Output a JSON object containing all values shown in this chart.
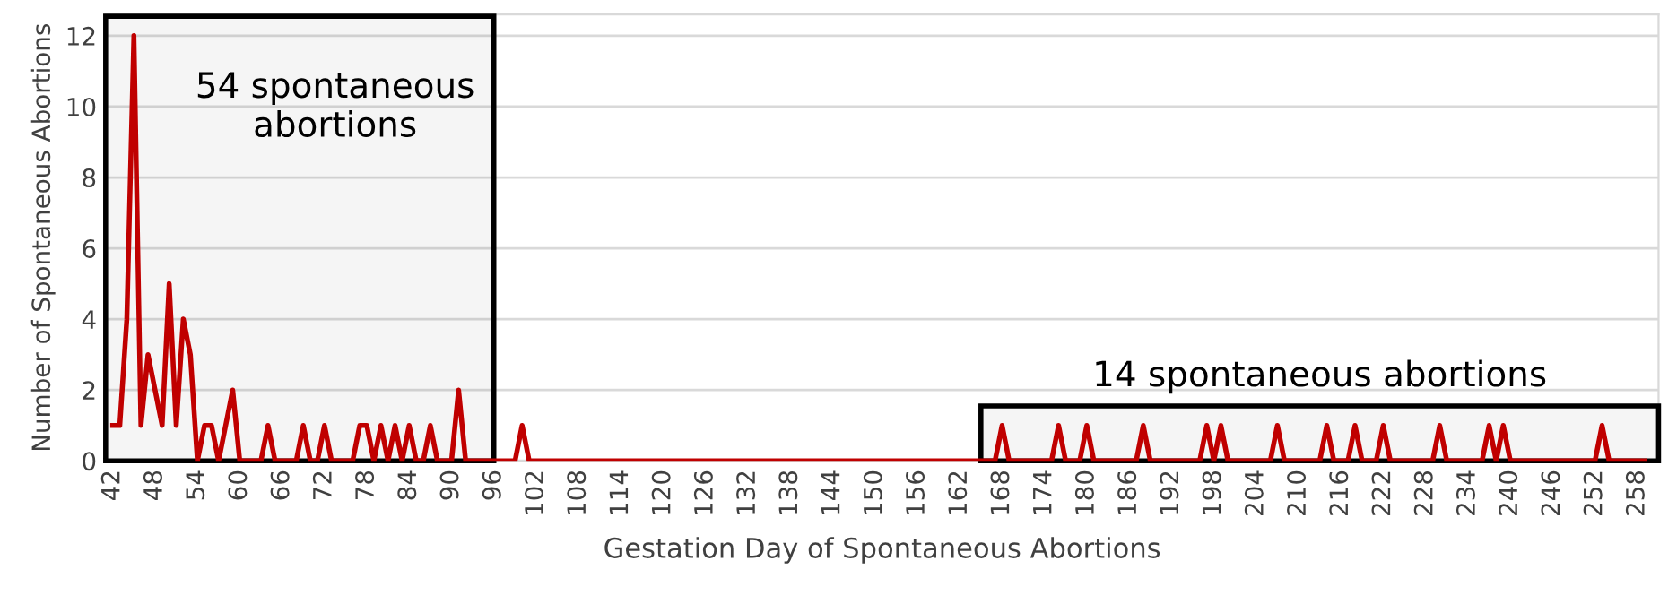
{
  "chart_data": {
    "type": "line",
    "xlabel": "Gestation Day of Spontaneous Abortions",
    "ylabel": "Number of Spontaneous Abortions",
    "x": [
      42,
      43,
      44,
      45,
      46,
      47,
      48,
      49,
      50,
      51,
      52,
      53,
      54,
      55,
      56,
      57,
      58,
      59,
      60,
      61,
      62,
      63,
      64,
      65,
      66,
      67,
      68,
      69,
      70,
      71,
      72,
      73,
      74,
      75,
      76,
      77,
      78,
      79,
      80,
      81,
      82,
      83,
      84,
      85,
      86,
      87,
      88,
      89,
      90,
      91,
      92,
      93,
      94,
      95,
      96,
      97,
      98,
      99,
      100,
      101,
      102,
      103,
      104,
      105,
      106,
      107,
      108,
      109,
      110,
      111,
      112,
      113,
      114,
      115,
      116,
      117,
      118,
      119,
      120,
      121,
      122,
      123,
      124,
      125,
      126,
      127,
      128,
      129,
      130,
      131,
      132,
      133,
      134,
      135,
      136,
      137,
      138,
      139,
      140,
      141,
      142,
      143,
      144,
      145,
      146,
      147,
      148,
      149,
      150,
      151,
      152,
      153,
      154,
      155,
      156,
      157,
      158,
      159,
      160,
      161,
      162,
      163,
      164,
      165,
      166,
      167,
      168,
      169,
      170,
      171,
      172,
      173,
      174,
      175,
      176,
      177,
      178,
      179,
      180,
      181,
      182,
      183,
      184,
      185,
      186,
      187,
      188,
      189,
      190,
      191,
      192,
      193,
      194,
      195,
      196,
      197,
      198,
      199,
      200,
      201,
      202,
      203,
      204,
      205,
      206,
      207,
      208,
      209,
      210,
      211,
      212,
      213,
      214,
      215,
      216,
      217,
      218,
      219,
      220,
      221,
      222,
      223,
      224,
      225,
      226,
      227,
      228,
      229,
      230,
      231,
      232,
      233,
      234,
      235,
      236,
      237,
      238,
      239,
      240,
      241,
      242,
      243,
      244,
      245,
      246,
      247,
      248,
      249,
      250,
      251,
      252,
      253,
      254,
      255,
      256,
      257,
      258,
      259
    ],
    "series": [
      {
        "color": "#c00000",
        "values": [
          1,
          1,
          4,
          12,
          1,
          3,
          2,
          1,
          5,
          1,
          4,
          3,
          0,
          1,
          1,
          0,
          1,
          2,
          0,
          0,
          0,
          0,
          1,
          0,
          0,
          0,
          0,
          1,
          0,
          0,
          1,
          0,
          0,
          0,
          0,
          1,
          1,
          0,
          1,
          0,
          1,
          0,
          1,
          0,
          0,
          1,
          0,
          0,
          0,
          2,
          0,
          0,
          0,
          0,
          0,
          0,
          0,
          0,
          1,
          0,
          0,
          0,
          0,
          0,
          0,
          0,
          0,
          0,
          0,
          0,
          0,
          0,
          0,
          0,
          0,
          0,
          0,
          0,
          0,
          0,
          0,
          0,
          0,
          0,
          0,
          0,
          0,
          0,
          0,
          0,
          0,
          0,
          0,
          0,
          0,
          0,
          0,
          0,
          0,
          0,
          0,
          0,
          0,
          0,
          0,
          0,
          0,
          0,
          0,
          0,
          0,
          0,
          0,
          0,
          0,
          0,
          0,
          0,
          0,
          0,
          0,
          0,
          0,
          0,
          0,
          0,
          1,
          0,
          0,
          0,
          0,
          0,
          0,
          0,
          1,
          0,
          0,
          0,
          1,
          0,
          0,
          0,
          0,
          0,
          0,
          0,
          1,
          0,
          0,
          0,
          0,
          0,
          0,
          0,
          0,
          1,
          0,
          1,
          0,
          0,
          0,
          0,
          0,
          0,
          0,
          1,
          0,
          0,
          0,
          0,
          0,
          0,
          1,
          0,
          0,
          0,
          1,
          0,
          0,
          0,
          1,
          0,
          0,
          0,
          0,
          0,
          0,
          0,
          1,
          0,
          0,
          0,
          0,
          0,
          0,
          1,
          0,
          1,
          0,
          0,
          0,
          0,
          0,
          0,
          0,
          0,
          0,
          0,
          0,
          0,
          0,
          1,
          0,
          0,
          0,
          0,
          0,
          0
        ]
      }
    ],
    "xlim": [
      41,
      261
    ],
    "xticks": [
      42,
      48,
      54,
      60,
      66,
      72,
      78,
      84,
      90,
      96,
      102,
      108,
      114,
      120,
      126,
      132,
      138,
      144,
      150,
      156,
      162,
      168,
      174,
      180,
      186,
      192,
      198,
      204,
      210,
      216,
      222,
      228,
      234,
      240,
      246,
      252,
      258
    ],
    "ylim": [
      0,
      12.6
    ],
    "yticks": [
      0,
      2,
      4,
      6,
      8,
      10,
      12
    ],
    "grid": "y",
    "marker": "none",
    "line_style": "solid",
    "bands": [
      {
        "axis": "x",
        "from": 41,
        "to": 96,
        "label": "54 spontaneous\nabortions",
        "color": "#000000"
      },
      {
        "axis": "x",
        "from": 165,
        "to": 261,
        "label": "14 spontaneous abortions",
        "color": "#000000"
      }
    ]
  }
}
